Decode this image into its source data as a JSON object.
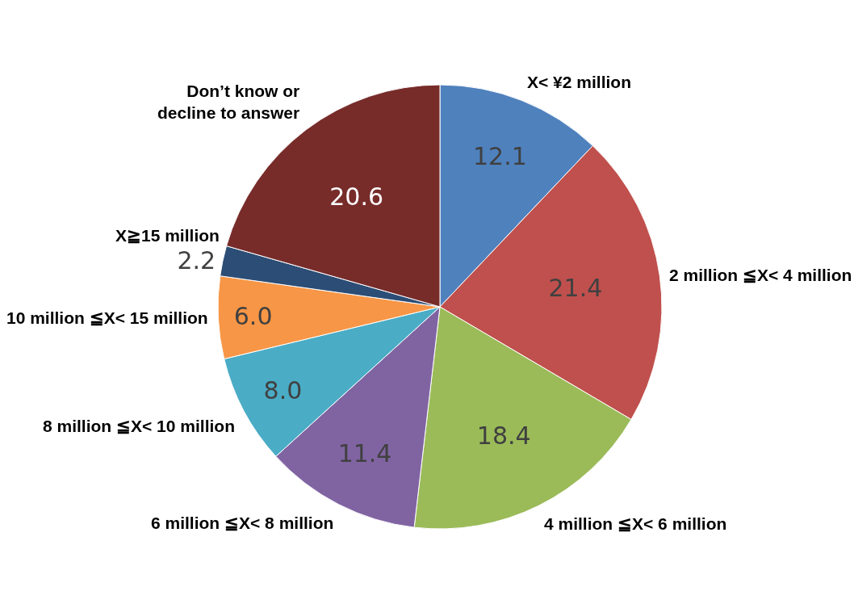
{
  "chart_data": {
    "type": "pie",
    "categories": [
      "X< ¥2 million",
      "2 million ≦X< 4 million",
      "4 million ≦X< 6 million",
      "6 million ≦X< 8 million",
      "8 million ≦X< 10 million",
      "10 million ≦X< 15 million",
      "X≧15 million",
      "Don’t know or decline to answer"
    ],
    "values": [
      12.1,
      21.4,
      18.4,
      11.4,
      8.0,
      6.0,
      2.2,
      20.6
    ],
    "value_labels": [
      "12.1",
      "21.4",
      "18.4",
      "11.4",
      "8.0",
      "6.0",
      "2.2",
      "20.6"
    ],
    "colors": [
      "#4f81bd",
      "#c0504d",
      "#9bbb59",
      "#8064a2",
      "#4bacc6",
      "#f79646",
      "#2c4d75",
      "#772c2a"
    ],
    "legend": false
  }
}
